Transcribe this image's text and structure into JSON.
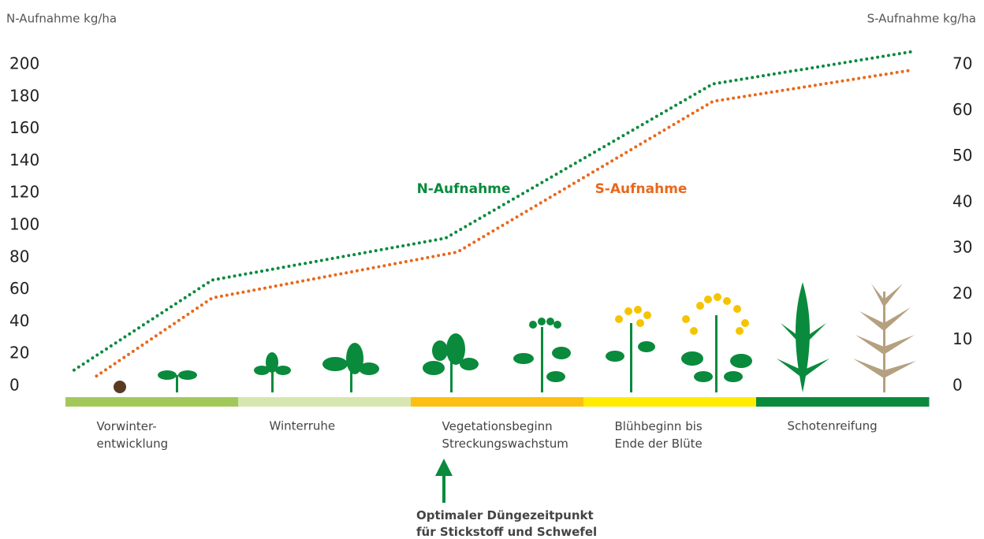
{
  "chart_data": {
    "type": "line",
    "y_label": "N-Aufnahme kg/ha",
    "y2_label": "S-Aufnahme kg/ha",
    "ylim": [
      0,
      200
    ],
    "yticks": [
      0,
      20,
      40,
      60,
      80,
      100,
      120,
      140,
      160,
      180,
      200
    ],
    "y2lim": [
      0,
      70
    ],
    "y2ticks": [
      0,
      10,
      20,
      30,
      40,
      50,
      60,
      70
    ],
    "xlim": [
      0,
      5
    ],
    "series": [
      {
        "name": "N-Aufnahme",
        "color": "#0a8a3c",
        "x": [
          0.05,
          0.85,
          2.2,
          3.75,
          4.9
        ],
        "values": [
          10,
          66,
          92,
          188,
          208
        ]
      },
      {
        "name": "S-Aufnahme",
        "color": "#e8681c",
        "axis": "y2",
        "x": [
          0.18,
          0.85,
          2.27,
          3.75,
          4.9
        ],
        "values": [
          2.2,
          19.2,
          29.2,
          62,
          68.8
        ]
      }
    ],
    "phases": [
      {
        "label": "Vorwinter-\nentwicklung",
        "color": "#a3c85a"
      },
      {
        "label": "Winterruhe",
        "color": "#d7e6b0"
      },
      {
        "label": "Vegetationsbeginn\nStreckungswachstum",
        "color": "#fdc010"
      },
      {
        "label": "Blühbeginn bis\nEnde der Blüte",
        "color": "#ffec00"
      },
      {
        "label": "Schotenreifung",
        "color": "#0a8a3c"
      }
    ],
    "annotation": "Optimaler Düngezeitpunkt\nfür Stickstoff und Schwefel"
  }
}
